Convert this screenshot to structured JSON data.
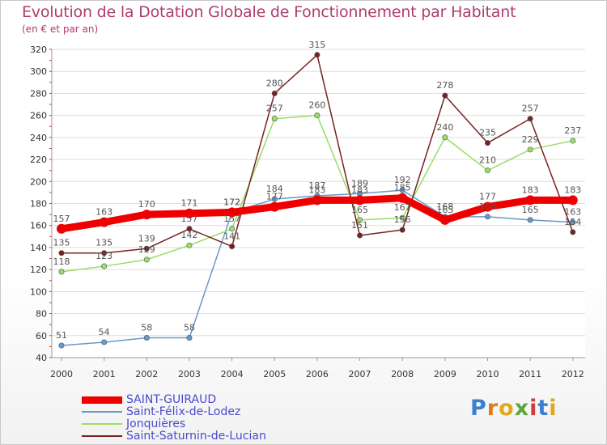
{
  "header": {
    "title": "Evolution de la Dotation Globale de Fonctionnement par Habitant",
    "subtitle": "(en € et par an)"
  },
  "brand": {
    "text": "Proxiti"
  },
  "chart_data": {
    "type": "line",
    "title": "Evolution de la Dotation Globale de Fonctionnement par Habitant",
    "ylabel": "(en € et par an)",
    "xlabel": "",
    "x": [
      "2000",
      "2001",
      "2002",
      "2003",
      "2004",
      "2005",
      "2006",
      "2007",
      "2008",
      "2009",
      "2010",
      "2011",
      "2012"
    ],
    "ylim": [
      40,
      320
    ],
    "yticks": [
      40,
      60,
      80,
      100,
      120,
      140,
      160,
      180,
      200,
      220,
      240,
      260,
      280,
      300,
      320
    ],
    "grid": "horizontal",
    "legend_position": "bottom-left",
    "series": [
      {
        "name": "SAINT-GUIRAUD",
        "color": "#ee0000",
        "values": [
          157,
          163,
          170,
          171,
          172,
          177,
          183,
          183,
          185,
          165,
          177,
          183,
          183
        ]
      },
      {
        "name": "Saint-Félix-de-Lodez",
        "color": "#6699cc",
        "values": [
          51,
          54,
          58,
          58,
          172,
          184,
          187,
          189,
          192,
          168,
          168,
          165,
          163
        ]
      },
      {
        "name": "Jonquières",
        "color": "#99dd66",
        "values": [
          118,
          123,
          129,
          142,
          157,
          257,
          260,
          165,
          167,
          240,
          210,
          229,
          237
        ]
      },
      {
        "name": "Saint-Saturnin-de-Lucian",
        "color": "#772222",
        "values": [
          135,
          135,
          139,
          157,
          141,
          280,
          315,
          151,
          156,
          278,
          235,
          257,
          154
        ]
      }
    ]
  }
}
